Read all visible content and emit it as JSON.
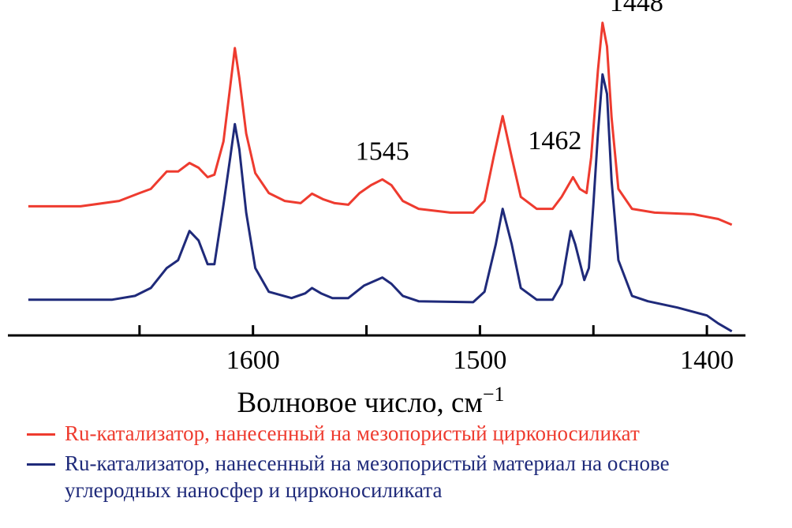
{
  "chart_data": {
    "type": "line",
    "x_label": "Волновое число, см",
    "x_label_sup": "−1",
    "xlim": [
      1708,
      1383
    ],
    "xticks": [
      1600,
      1500,
      1400
    ],
    "xminorticks": [
      1650,
      1550,
      1450
    ],
    "ylim": [
      0,
      106
    ],
    "annotations": [
      {
        "text": "1545",
        "x": 1543,
        "y": 55.5
      },
      {
        "text": "1462",
        "x": 1467,
        "y": 58.8
      },
      {
        "text": "1448",
        "x": 1431,
        "y": 102.5
      }
    ],
    "series": [
      {
        "name": "Ru-катализатор, нанесенный на мезопористый цирконосиликат",
        "color": "#ee3b2f",
        "x": [
          1699,
          1676,
          1659,
          1650,
          1645,
          1638,
          1633,
          1628,
          1624,
          1620,
          1617,
          1613,
          1610,
          1608,
          1606,
          1603,
          1599,
          1593,
          1586,
          1579,
          1574,
          1569,
          1564,
          1558,
          1553,
          1548,
          1543,
          1539,
          1534,
          1527,
          1513,
          1503,
          1498,
          1494,
          1490,
          1486,
          1482,
          1475,
          1468,
          1464,
          1459,
          1456,
          1453,
          1451,
          1448,
          1446,
          1444,
          1442,
          1439,
          1433,
          1423,
          1406,
          1395,
          1389
        ],
        "values": [
          40.8,
          40.8,
          42.5,
          45,
          46.3,
          51.8,
          51.8,
          54.5,
          53,
          50,
          50.8,
          61.3,
          78.8,
          90.8,
          81.3,
          63.8,
          51.3,
          45,
          42.5,
          41.8,
          44.8,
          43,
          41.8,
          41.3,
          45,
          47.5,
          49.3,
          47.5,
          42.5,
          40,
          38.8,
          38.8,
          42.5,
          56.3,
          69.3,
          56.3,
          43.8,
          40,
          40,
          43.8,
          50,
          46.3,
          45,
          56.3,
          83.8,
          98.8,
          91.3,
          68.8,
          46.3,
          40,
          38.8,
          38.3,
          36.8,
          35
        ]
      },
      {
        "name": "Ru-катализатор, нанесенный на мезопористый материал на основе углеродных наносфер и цирконосиликата",
        "color": "#1f2a7a",
        "x": [
          1699,
          1662,
          1652,
          1645,
          1638,
          1633,
          1628,
          1624,
          1620,
          1617,
          1613,
          1610,
          1608,
          1606,
          1603,
          1599,
          1593,
          1583,
          1577,
          1574,
          1570,
          1565,
          1558,
          1551,
          1543,
          1539,
          1534,
          1527,
          1503,
          1498,
          1493,
          1490,
          1486,
          1482,
          1475,
          1468,
          1464,
          1460,
          1458,
          1454,
          1452,
          1450,
          1448,
          1446,
          1444,
          1442,
          1439,
          1433,
          1426,
          1413,
          1400,
          1395,
          1389
        ],
        "values": [
          11.3,
          11.3,
          12.5,
          15,
          21.3,
          23.8,
          33,
          30,
          22.5,
          22.5,
          41.3,
          56.3,
          66.8,
          58.8,
          38.8,
          21.3,
          13.8,
          11.8,
          13.3,
          15,
          13.3,
          11.8,
          11.8,
          15.8,
          18.3,
          16.3,
          12.5,
          10.8,
          10.5,
          13.8,
          28.8,
          40,
          28.8,
          15,
          11.3,
          11.3,
          16.3,
          33,
          28.8,
          17.5,
          21.3,
          41.3,
          63.8,
          82.5,
          76.3,
          48.8,
          23.8,
          12.5,
          10.8,
          8.8,
          6.3,
          3.8,
          1.3
        ]
      }
    ]
  }
}
